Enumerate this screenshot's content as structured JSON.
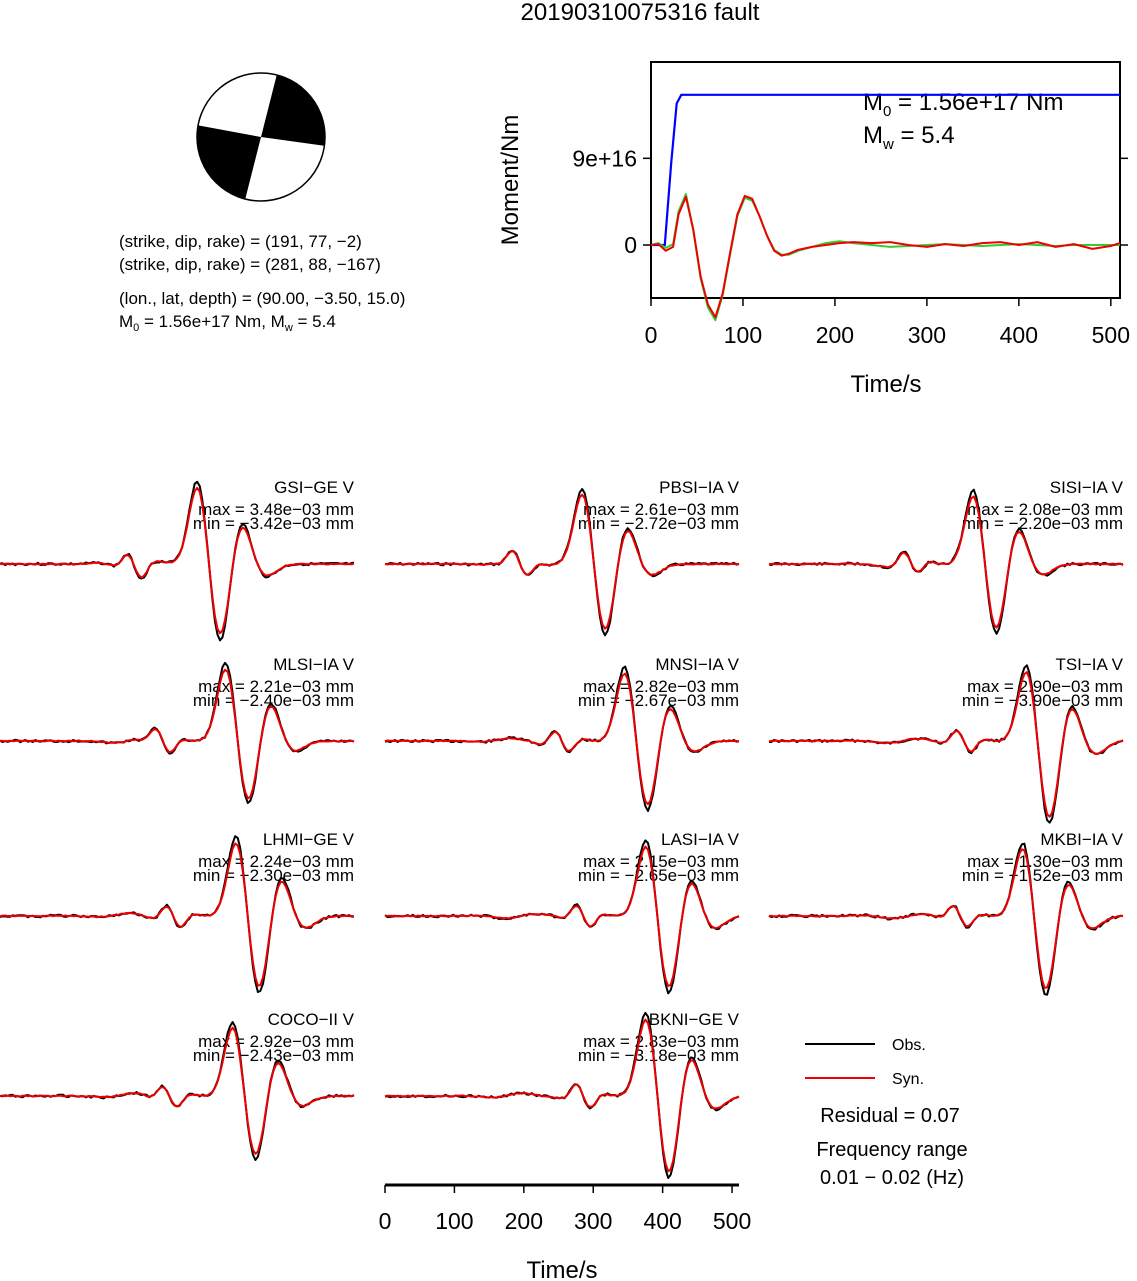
{
  "title": "20190310075316 fault",
  "mechanism": {
    "plane1": "(strike, dip, rake) = (191, 77, −2)",
    "plane2": "(strike, dip, rake) = (281, 88, −167)",
    "location": "(lon., lat, depth) = (90.00, −3.50, 15.0)",
    "moment_pre": "M",
    "moment_sub": "0",
    "moment_mid": " = 1.56e+17 Nm, M",
    "moment_sub2": "w",
    "moment_post": " = 5.4"
  },
  "chart_data": [
    {
      "type": "line",
      "title": "",
      "xlabel": "Time/s",
      "ylabel": "Moment/Nm",
      "xlim": [
        0,
        510
      ],
      "ylim": [
        -5.5e+16,
        1.9e+17
      ],
      "xticks": [
        "0",
        "100",
        "200",
        "300",
        "400",
        "500"
      ],
      "yticks": [
        "0",
        "9e+16"
      ],
      "annotation": {
        "m0_pre": "M",
        "m0_sub": "0",
        "m0_post": " = 1.56e+17 Nm",
        "mw_pre": "M",
        "mw_sub": "w",
        "mw_post": " = 5.4"
      },
      "series": [
        {
          "color": "#0000ff",
          "x": [
            0,
            15,
            22,
            28,
            33,
            510
          ],
          "y": [
            0,
            0,
            8.5e+16,
            1.47e+17,
            1.56e+17,
            1.56e+17
          ]
        }
      ],
      "source_time_function": {
        "x": [
          0,
          8,
          16,
          24,
          30,
          38,
          46,
          54,
          62,
          70,
          78,
          86,
          94,
          102,
          110,
          118,
          126,
          134,
          142,
          150,
          160,
          175,
          190,
          205,
          220,
          240,
          260,
          280,
          300,
          320,
          340,
          360,
          380,
          400,
          420,
          440,
          460,
          480,
          500,
          510
        ],
        "green": [
          0,
          2000000000000000.0,
          -3000000000000000.0,
          1000000000000000.0,
          3.5e+16,
          5.3e+16,
          1.5e+16,
          -3.5e+16,
          -6.5e+16,
          -7.8e+16,
          -5.2e+16,
          -1e+16,
          3e+16,
          4.9e+16,
          4.6e+16,
          3e+16,
          1e+16,
          -5000000000000000.0,
          -1e+16,
          -1e+16,
          -6000000000000000.0,
          -2000000000000000.0,
          2000000000000000.0,
          4000000000000000.0,
          2000000000000000.0,
          0,
          -2000000000000000.0,
          -1000000000000000.0,
          0,
          1000000000000000.0,
          0,
          -1000000000000000.0,
          0,
          1000000000000000.0,
          0,
          -1000000000000000.0,
          0,
          0,
          0,
          0
        ],
        "red": [
          0,
          1000000000000000.0,
          -6000000000000000.0,
          -2000000000000000.0,
          3.2e+16,
          5e+16,
          1.6e+16,
          -3.3e+16,
          -6.2e+16,
          -7.5e+16,
          -5e+16,
          -8000000000000000.0,
          3.2e+16,
          5.1e+16,
          4.8e+16,
          3e+16,
          1e+16,
          -6000000000000000.0,
          -1.1e+16,
          -9000000000000000.0,
          -5000000000000000.0,
          -2000000000000000.0,
          0,
          2000000000000000.0,
          3000000000000000.0,
          2000000000000000.0,
          3000000000000000.0,
          0,
          -2000000000000000.0,
          1000000000000000.0,
          -1000000000000000.0,
          2000000000000000.0,
          3000000000000000.0,
          0,
          3000000000000000.0,
          -2000000000000000.0,
          1000000000000000.0,
          -4000000000000000.0,
          -1000000000000000.0,
          2000000000000000.0
        ]
      }
    },
    {
      "type": "line",
      "xlabel": "Time/s",
      "xlim": [
        0,
        510
      ],
      "xticks": [
        "0",
        "100",
        "200",
        "300",
        "400",
        "500"
      ],
      "legend": [
        "Obs.",
        "Syn."
      ],
      "legend_colors": [
        "#000000",
        "#ee0000"
      ],
      "stations": [
        {
          "name": "GSI−GE V",
          "max": "max = 3.48e−03 mm",
          "min": "min = −3.42e−03 mm"
        },
        {
          "name": "PBSI−IA V",
          "max": "max = 2.61e−03 mm",
          "min": "min = −2.72e−03 mm"
        },
        {
          "name": "SISI−IA V",
          "max": "max = 2.08e−03 mm",
          "min": "min = −2.20e−03 mm"
        },
        {
          "name": "MLSI−IA V",
          "max": "max = 2.21e−03 mm",
          "min": "min = −2.40e−03 mm"
        },
        {
          "name": "MNSI−IA V",
          "max": "max = 2.82e−03 mm",
          "min": "min = −2.67e−03 mm"
        },
        {
          "name": "TSI−IA V",
          "max": "max = 2.90e−03 mm",
          "min": "min = −3.90e−03 mm"
        },
        {
          "name": "LHMI−GE V",
          "max": "max = 2.24e−03 mm",
          "min": "min = −2.30e−03 mm"
        },
        {
          "name": "LASI−IA V",
          "max": "max = 2.15e−03 mm",
          "min": "min = −2.65e−03 mm"
        },
        {
          "name": "MKBI−IA V",
          "max": "max = 1.30e−03 mm",
          "min": "min = −1.52e−03 mm"
        },
        {
          "name": "COCO−II V",
          "max": "max = 2.92e−03 mm",
          "min": "min = −2.43e−03 mm"
        },
        {
          "name": "BKNI−GE V",
          "max": "max = 2.83e−03 mm",
          "min": "min = −3.18e−03 mm"
        }
      ]
    }
  ],
  "residual": "Residual = 0.07",
  "freq_label": "Frequency range",
  "freq_value": "0.01 − 0.02 (Hz)"
}
